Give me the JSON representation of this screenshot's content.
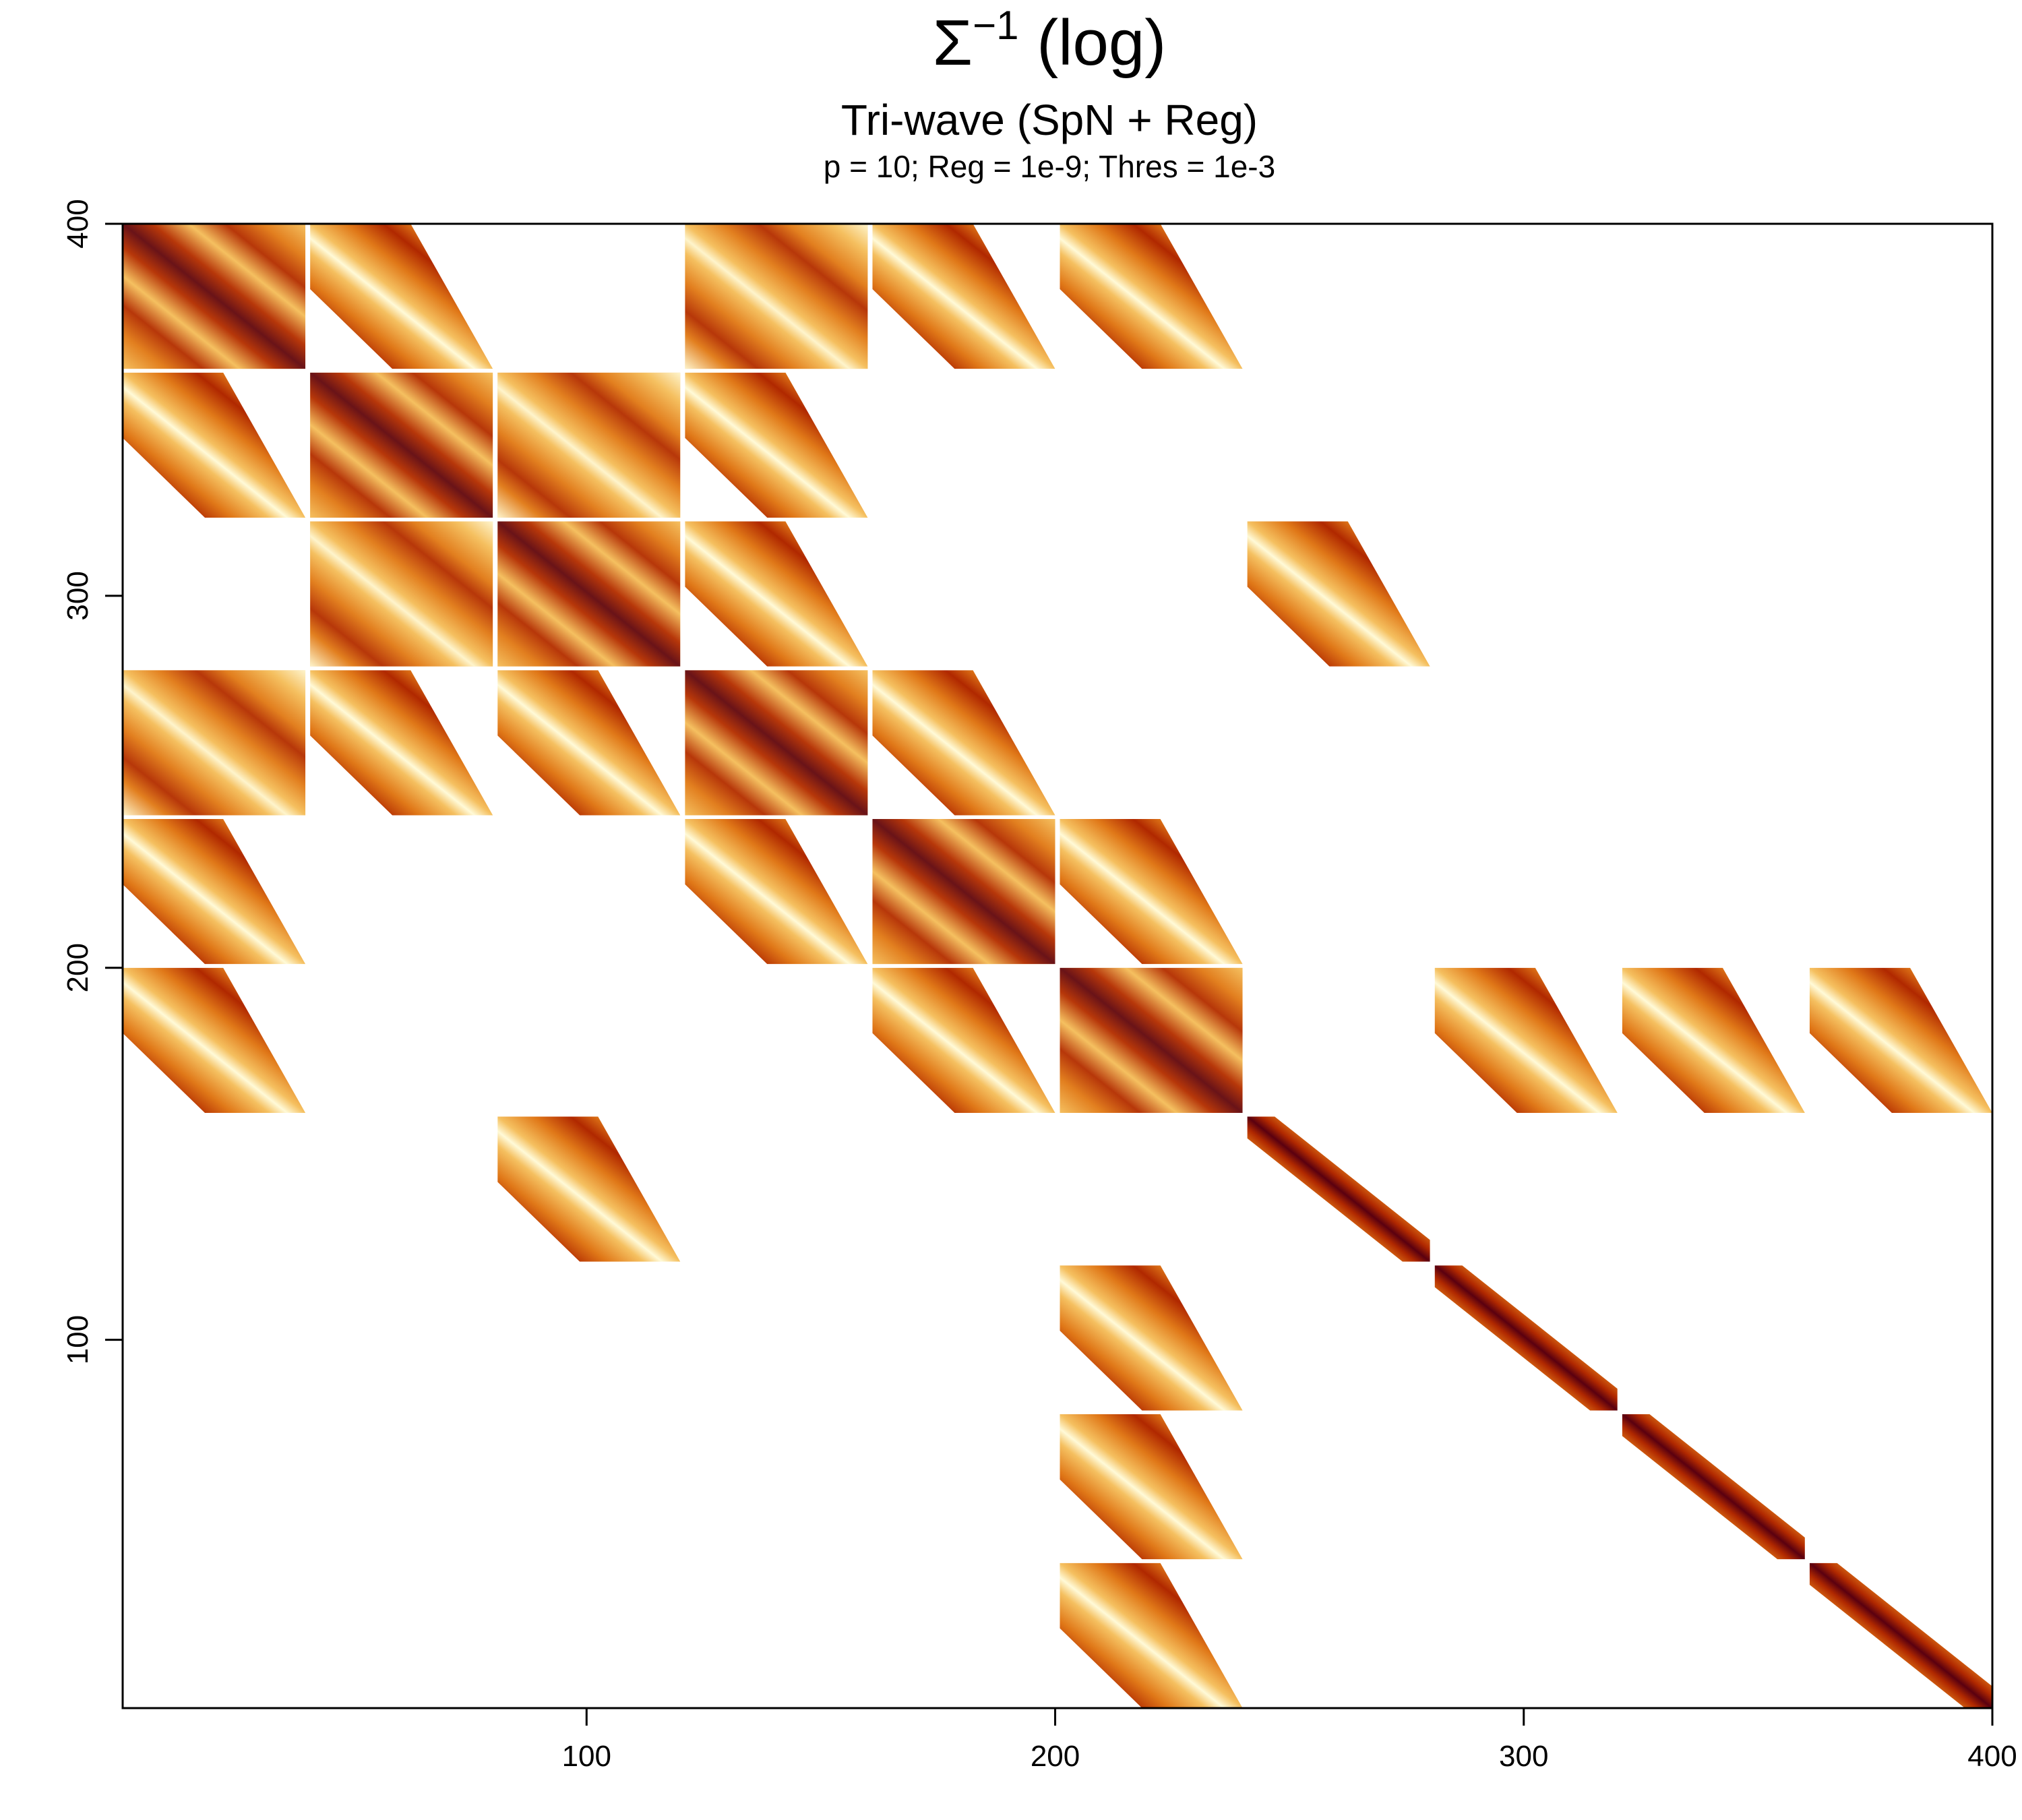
{
  "chart_data": {
    "type": "heatmap",
    "title": {
      "symbol": "Σ",
      "superscript": "−1",
      "suffix": " (log)"
    },
    "subtitle": "Tri-wave (SpN + Reg)",
    "note": "p = 10; Reg = 1e-9; Thres = 1e-3",
    "xlim": [
      1,
      400
    ],
    "ylim": [
      1,
      400
    ],
    "x_ticks": [
      "100",
      "200",
      "300",
      "400"
    ],
    "y_ticks": [
      "100",
      "200",
      "300",
      "400"
    ],
    "grid": false,
    "legend": "none",
    "block_size": 40,
    "colors": {
      "low": "#fffad8",
      "light": "#f5c060",
      "mid": "#e07818",
      "high": "#b02800",
      "max": "#5a0010"
    },
    "blocks": [
      {
        "col": 1,
        "row": 10,
        "kind": "diag"
      },
      {
        "col": 2,
        "row": 10,
        "kind": "plain"
      },
      {
        "col": 4,
        "row": 10,
        "kind": "filled"
      },
      {
        "col": 5,
        "row": 10,
        "kind": "partial"
      },
      {
        "col": 6,
        "row": 10,
        "kind": "plain"
      },
      {
        "col": 1,
        "row": 9,
        "kind": "plain"
      },
      {
        "col": 2,
        "row": 9,
        "kind": "diag"
      },
      {
        "col": 3,
        "row": 9,
        "kind": "filled"
      },
      {
        "col": 4,
        "row": 9,
        "kind": "plain"
      },
      {
        "col": 2,
        "row": 8,
        "kind": "filled"
      },
      {
        "col": 3,
        "row": 8,
        "kind": "diag"
      },
      {
        "col": 4,
        "row": 8,
        "kind": "plain"
      },
      {
        "col": 7,
        "row": 8,
        "kind": "plain"
      },
      {
        "col": 1,
        "row": 7,
        "kind": "filled"
      },
      {
        "col": 2,
        "row": 7,
        "kind": "plain"
      },
      {
        "col": 3,
        "row": 7,
        "kind": "plain"
      },
      {
        "col": 4,
        "row": 7,
        "kind": "diag"
      },
      {
        "col": 5,
        "row": 7,
        "kind": "plain"
      },
      {
        "col": 1,
        "row": 6,
        "kind": "partial"
      },
      {
        "col": 4,
        "row": 6,
        "kind": "plain"
      },
      {
        "col": 5,
        "row": 6,
        "kind": "diag"
      },
      {
        "col": 6,
        "row": 6,
        "kind": "plain"
      },
      {
        "col": 1,
        "row": 5,
        "kind": "plain"
      },
      {
        "col": 5,
        "row": 5,
        "kind": "plain"
      },
      {
        "col": 6,
        "row": 5,
        "kind": "diag"
      },
      {
        "col": 8,
        "row": 5,
        "kind": "plain"
      },
      {
        "col": 9,
        "row": 5,
        "kind": "plain"
      },
      {
        "col": 10,
        "row": 5,
        "kind": "plain"
      },
      {
        "col": 3,
        "row": 4,
        "kind": "plain"
      },
      {
        "col": 7,
        "row": 4,
        "kind": "band"
      },
      {
        "col": 6,
        "row": 3,
        "kind": "plain"
      },
      {
        "col": 8,
        "row": 3,
        "kind": "band"
      },
      {
        "col": 6,
        "row": 2,
        "kind": "plain"
      },
      {
        "col": 9,
        "row": 2,
        "kind": "band"
      },
      {
        "col": 6,
        "row": 1,
        "kind": "plain"
      },
      {
        "col": 10,
        "row": 1,
        "kind": "band"
      }
    ]
  }
}
